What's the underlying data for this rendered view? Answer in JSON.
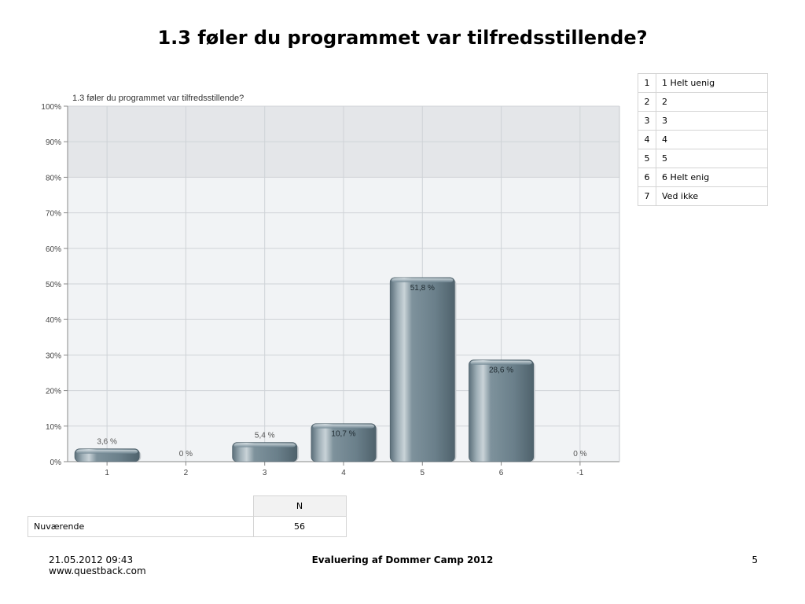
{
  "page": {
    "title": "1.3 føler du programmet var tilfredsstillende?"
  },
  "chart_data": {
    "type": "bar",
    "title": "1.3 føler du programmet var tilfredsstillende?",
    "categories": [
      "1",
      "2",
      "3",
      "4",
      "5",
      "6",
      "-1"
    ],
    "values": [
      3.6,
      0,
      5.4,
      10.7,
      51.8,
      28.6,
      0
    ],
    "data_labels": [
      "3,6 %",
      "0 %",
      "5,4 %",
      "10,7 %",
      "51,8 %",
      "28,6 %",
      "0 %"
    ],
    "y_ticks": [
      "0%",
      "10%",
      "20%",
      "30%",
      "40%",
      "50%",
      "60%",
      "70%",
      "80%",
      "90%",
      "100%"
    ],
    "ylim": [
      0,
      100
    ],
    "xlabel": "",
    "ylabel": "",
    "grid": true,
    "bar_color": "#6f8591"
  },
  "legend": {
    "rows": [
      {
        "code": "1",
        "label": "1 Helt uenig"
      },
      {
        "code": "2",
        "label": "2"
      },
      {
        "code": "3",
        "label": "3"
      },
      {
        "code": "4",
        "label": "4"
      },
      {
        "code": "5",
        "label": "5"
      },
      {
        "code": "6",
        "label": "6 Helt enig"
      },
      {
        "code": "7",
        "label": "Ved ikke"
      }
    ]
  },
  "n_table": {
    "header": "N",
    "row_label": "Nuværende",
    "row_value": "56"
  },
  "footer": {
    "timestamp": "21.05.2012 09:43",
    "website": "www.questback.com",
    "center": "Evaluering af Dommer Camp 2012",
    "page_number": "5"
  }
}
